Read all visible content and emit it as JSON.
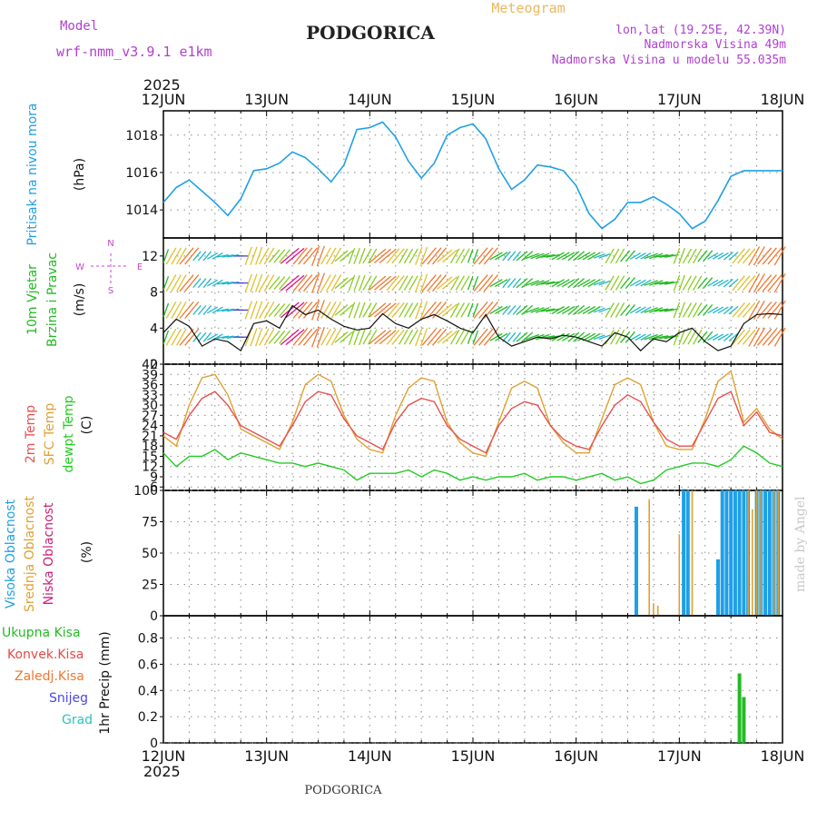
{
  "header": {
    "model_label": "Model",
    "model_name": "wrf-nmm_v3.9.1  e1km",
    "station": "PODGORICA",
    "product": "Meteogram",
    "coords": "lon,lat (19.25E, 42.39N)",
    "elevation": "Nadmorska Visina 49m",
    "model_elevation": "Nadmorska Visina u modelu 55.035m",
    "year_top": "2025",
    "year_bottom": "2025",
    "footer_station": "PODGORICA",
    "credit": "made by Angel"
  },
  "colors": {
    "pressure": "#1ea0e6",
    "temp2m": "#e85050",
    "sfc": "#e0a030",
    "dewpt": "#22cc22",
    "high_cloud": "#1ea0e6",
    "mid_cloud": "#e0a030",
    "low_cloud": "#cc2277",
    "total_precip": "#22bb22",
    "conv_precip": "#e84848",
    "frz_precip": "#f07830",
    "snow": "#4848e0",
    "hail": "#30c0c0",
    "wind_label": "#22bb22",
    "wind_compass": "#cc44cc",
    "purple_text": "#b040d0",
    "gold_text": "#e8b860"
  },
  "days": [
    "12JUN",
    "13JUN",
    "14JUN",
    "15JUN",
    "16JUN",
    "17JUN",
    "18JUN"
  ],
  "chart_data": [
    {
      "type": "line",
      "panel": "pressure",
      "ylabel_main": "Pritisak na nivou mora",
      "ylabel_unit": "(hPa)",
      "yticks": [
        1014,
        1016,
        1018
      ],
      "ylim": [
        1012.5,
        1019.3
      ],
      "grid": true,
      "series": [
        {
          "x": [
            0,
            3,
            6,
            9,
            12,
            15,
            18,
            21,
            24,
            27,
            30,
            33,
            36,
            39,
            42,
            45,
            48,
            51,
            54,
            57,
            60,
            63,
            66,
            69,
            72,
            75,
            78,
            81,
            84,
            87,
            90,
            93,
            96,
            99,
            102,
            105,
            108,
            111,
            114,
            117,
            120,
            123,
            126,
            129,
            132,
            135,
            138,
            141,
            144
          ],
          "values": [
            1014.4,
            1015.2,
            1015.6,
            1015.0,
            1014.4,
            1013.7,
            1014.6,
            1016.1,
            1016.2,
            1016.5,
            1017.1,
            1016.8,
            1016.2,
            1015.5,
            1016.4,
            1018.3,
            1018.4,
            1018.7,
            1017.9,
            1016.6,
            1015.7,
            1016.5,
            1018.0,
            1018.4,
            1018.6,
            1017.8,
            1016.2,
            1015.1,
            1015.6,
            1016.4,
            1016.3,
            1016.1,
            1015.3,
            1013.8,
            1013.0,
            1013.5,
            1014.4,
            1014.4,
            1014.7,
            1014.3,
            1013.8,
            1013.0,
            1013.4,
            1014.5,
            1015.8,
            1016.1,
            1016.1,
            1016.1,
            1016.1
          ]
        }
      ]
    },
    {
      "type": "line",
      "panel": "wind",
      "ylabel_main": "10m Vjetar",
      "ylabel_sub": "Brzina i Pravac",
      "ylabel_unit": "(m/s)",
      "yticks": [
        0,
        4,
        8,
        12
      ],
      "ylim": [
        0,
        14
      ],
      "grid": true,
      "compass": [
        "N",
        "<",
        "-",
        "|",
        "-",
        ">",
        "W",
        "E",
        "S"
      ],
      "series": [
        {
          "x": [
            0,
            3,
            6,
            9,
            12,
            15,
            18,
            21,
            24,
            27,
            30,
            33,
            36,
            39,
            42,
            45,
            48,
            51,
            54,
            57,
            60,
            63,
            66,
            69,
            72,
            75,
            78,
            81,
            84,
            87,
            90,
            93,
            96,
            99,
            102,
            105,
            108,
            111,
            114,
            117,
            120,
            123,
            126,
            129,
            132,
            135,
            138,
            141,
            144
          ],
          "values": [
            3.5,
            5.0,
            4.2,
            2.0,
            2.8,
            2.5,
            1.5,
            4.5,
            4.8,
            4.0,
            6.5,
            5.5,
            6.0,
            5.0,
            4.2,
            3.8,
            4.0,
            5.6,
            4.5,
            4.0,
            5.0,
            5.5,
            4.8,
            4.0,
            3.5,
            5.5,
            3.0,
            2.0,
            2.5,
            3.0,
            2.8,
            3.2,
            3.0,
            2.5,
            2.0,
            3.5,
            3.0,
            1.5,
            2.8,
            2.5,
            3.5,
            4.0,
            2.5,
            1.5,
            2.0,
            4.5,
            5.5,
            5.6,
            5.5
          ]
        }
      ],
      "arrows_speed_ms": [
        3,
        5,
        6,
        2,
        2,
        2,
        1,
        5,
        5,
        4,
        7,
        6,
        6,
        5,
        4,
        4,
        4,
        6,
        5,
        4,
        5,
        6,
        5,
        4,
        3,
        6,
        3,
        2,
        3,
        3,
        3,
        3,
        3,
        3,
        2,
        4,
        3,
        2,
        3,
        3,
        4,
        4,
        3,
        2,
        2,
        5,
        6,
        6,
        6
      ],
      "arrows_dir_deg": [
        200,
        210,
        220,
        40,
        60,
        80,
        90,
        200,
        210,
        220,
        230,
        220,
        200,
        210,
        230,
        200,
        210,
        230,
        220,
        210,
        200,
        220,
        230,
        210,
        200,
        220,
        60,
        40,
        50,
        70,
        80,
        60,
        50,
        60,
        70,
        210,
        220,
        60,
        70,
        80,
        200,
        210,
        220,
        60,
        50,
        220,
        210,
        220,
        210
      ]
    },
    {
      "type": "line",
      "panel": "temperature",
      "ylabel_lines": [
        "2m Temp",
        "SFC Temp",
        "dewpt Temp"
      ],
      "ylabel_unit": "(C)",
      "yticks": [
        6,
        9,
        12,
        15,
        18,
        21,
        24,
        27,
        30,
        33,
        36,
        39,
        42
      ],
      "ylim": [
        5,
        42
      ],
      "grid": true,
      "series": [
        {
          "name": "2m Temp",
          "x": [
            0,
            3,
            6,
            9,
            12,
            15,
            18,
            21,
            24,
            27,
            30,
            33,
            36,
            39,
            42,
            45,
            48,
            51,
            54,
            57,
            60,
            63,
            66,
            69,
            72,
            75,
            78,
            81,
            84,
            87,
            90,
            93,
            96,
            99,
            102,
            105,
            108,
            111,
            114,
            117,
            120,
            123,
            126,
            129,
            132,
            135,
            138,
            141,
            144
          ],
          "values": [
            22,
            20,
            27,
            32,
            34,
            30,
            24,
            22,
            20,
            18,
            24,
            31,
            34,
            33,
            26,
            21,
            19,
            17,
            25,
            30,
            32,
            31,
            24,
            20,
            18,
            16,
            24,
            29,
            31,
            30,
            24,
            20,
            18,
            17,
            24,
            30,
            33,
            31,
            25,
            20,
            18,
            18,
            25,
            32,
            34,
            24,
            28,
            22,
            21
          ]
        },
        {
          "name": "SFC Temp",
          "x": [
            0,
            3,
            6,
            9,
            12,
            15,
            18,
            21,
            24,
            27,
            30,
            33,
            36,
            39,
            42,
            45,
            48,
            51,
            54,
            57,
            60,
            63,
            66,
            69,
            72,
            75,
            78,
            81,
            84,
            87,
            90,
            93,
            96,
            99,
            102,
            105,
            108,
            111,
            114,
            117,
            120,
            123,
            126,
            129,
            132,
            135,
            138,
            141,
            144
          ],
          "values": [
            21,
            18,
            30,
            38,
            39,
            33,
            23,
            21,
            19,
            17,
            25,
            36,
            39,
            37,
            27,
            20,
            17,
            16,
            27,
            35,
            38,
            37,
            25,
            19,
            16,
            15,
            25,
            35,
            37,
            35,
            24,
            19,
            16,
            16,
            26,
            36,
            38,
            36,
            25,
            18,
            17,
            17,
            26,
            37,
            40,
            25,
            29,
            23,
            20
          ]
        },
        {
          "name": "dewpt Temp",
          "x": [
            0,
            3,
            6,
            9,
            12,
            15,
            18,
            21,
            24,
            27,
            30,
            33,
            36,
            39,
            42,
            45,
            48,
            51,
            54,
            57,
            60,
            63,
            66,
            69,
            72,
            75,
            78,
            81,
            84,
            87,
            90,
            93,
            96,
            99,
            102,
            105,
            108,
            111,
            114,
            117,
            120,
            123,
            126,
            129,
            132,
            135,
            138,
            141,
            144
          ],
          "values": [
            16,
            12,
            15,
            15,
            17,
            14,
            16,
            15,
            14,
            13,
            13,
            12,
            13,
            12,
            11,
            8,
            10,
            10,
            10,
            11,
            9,
            11,
            10,
            8,
            9,
            8,
            9,
            9,
            10,
            8,
            9,
            9,
            8,
            9,
            10,
            8,
            9,
            7,
            8,
            11,
            12,
            13,
            13,
            12,
            14,
            18,
            16,
            13,
            12
          ]
        }
      ]
    },
    {
      "type": "bar",
      "panel": "cloud",
      "ylabel_lines": [
        "Visoka Oblacnost",
        "Srednja Oblacnost",
        "Niska Oblacnost"
      ],
      "ylabel_unit": "(%)",
      "yticks": [
        0,
        25,
        50,
        75,
        100
      ],
      "ylim": [
        0,
        100
      ],
      "grid": true,
      "series": [
        {
          "name": "Visoka Oblacnost",
          "x": [
            110,
            121,
            122,
            129,
            130,
            131,
            132,
            133,
            134,
            135,
            136,
            138,
            139,
            140,
            141,
            142,
            143
          ],
          "values": [
            87,
            100,
            100,
            45,
            100,
            100,
            100,
            100,
            100,
            100,
            100,
            100,
            100,
            100,
            100,
            100,
            100
          ]
        },
        {
          "name": "Srednja Oblacnost",
          "x": [
            113,
            114,
            115,
            118,
            120,
            123,
            136,
            137,
            138,
            139,
            142,
            143
          ],
          "values": [
            93,
            10,
            8,
            0,
            65,
            100,
            100,
            85,
            100,
            100,
            100,
            100
          ]
        }
      ]
    },
    {
      "type": "bar",
      "panel": "precip",
      "ylabel_main": "1hr Precip (mm)",
      "legend": [
        "Ukupna Kisa",
        "Konvek.Kisa",
        "Zaledj.Kisa",
        "Snijeg",
        "Grad"
      ],
      "yticks": [
        0,
        0.2,
        0.4,
        0.6,
        0.8
      ],
      "ylim": [
        0,
        0.97
      ],
      "grid": true,
      "series": [
        {
          "name": "Ukupna Kisa",
          "x": [
            134,
            135
          ],
          "values": [
            0.53,
            0.35
          ]
        }
      ]
    }
  ]
}
